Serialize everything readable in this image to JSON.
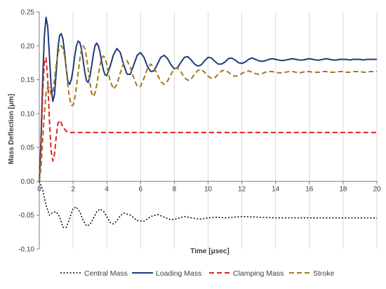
{
  "chart_data": {
    "type": "line",
    "title": "",
    "xlabel": "Time [μsec]",
    "ylabel": "Mass Deflection [μm]",
    "xlim": [
      0,
      20
    ],
    "ylim": [
      -0.1,
      0.25
    ],
    "x_ticks": [
      "0",
      "2",
      "4",
      "6",
      "8",
      "10",
      "12",
      "14",
      "16",
      "18",
      "20"
    ],
    "y_ticks": [
      "-0.10",
      "-0.05",
      "0.00",
      "0.05",
      "0.10",
      "0.15",
      "0.20",
      "0.25"
    ],
    "grid": "vertical",
    "legend_position": "bottom",
    "series": [
      {
        "name": "Central Mass",
        "color": "#000000",
        "style": "dotted",
        "x": [
          0,
          0.2,
          0.4,
          0.6,
          0.8,
          1.0,
          1.2,
          1.4,
          1.6,
          1.8,
          2.0,
          2.2,
          2.4,
          2.6,
          2.8,
          3.0,
          3.2,
          3.4,
          3.6,
          3.8,
          4.0,
          4.2,
          4.4,
          4.6,
          4.8,
          5.0,
          5.4,
          5.8,
          6.2,
          6.6,
          7.0,
          7.4,
          7.8,
          8.2,
          8.6,
          9.0,
          9.5,
          10.0,
          10.5,
          11.0,
          11.5,
          12.0,
          13.0,
          14.0,
          16.0,
          18.0,
          20.0
        ],
        "y": [
          0,
          -0.012,
          -0.035,
          -0.05,
          -0.046,
          -0.045,
          -0.052,
          -0.068,
          -0.068,
          -0.055,
          -0.04,
          -0.038,
          -0.045,
          -0.058,
          -0.066,
          -0.064,
          -0.055,
          -0.045,
          -0.041,
          -0.044,
          -0.052,
          -0.061,
          -0.063,
          -0.058,
          -0.051,
          -0.047,
          -0.05,
          -0.058,
          -0.059,
          -0.052,
          -0.049,
          -0.053,
          -0.057,
          -0.055,
          -0.052,
          -0.054,
          -0.056,
          -0.054,
          -0.053,
          -0.054,
          -0.053,
          -0.052,
          -0.053,
          -0.054,
          -0.054,
          -0.054,
          -0.054
        ]
      },
      {
        "name": "Loading Mass",
        "color": "#1f3b7a",
        "style": "solid",
        "x": [
          0,
          0.1,
          0.2,
          0.3,
          0.4,
          0.5,
          0.6,
          0.7,
          0.8,
          0.9,
          1.0,
          1.1,
          1.2,
          1.3,
          1.4,
          1.5,
          1.6,
          1.7,
          1.8,
          1.9,
          2.0,
          2.1,
          2.2,
          2.3,
          2.4,
          2.5,
          2.6,
          2.7,
          2.8,
          2.9,
          3.0,
          3.1,
          3.2,
          3.3,
          3.4,
          3.5,
          3.6,
          3.7,
          3.8,
          3.9,
          4.0,
          4.2,
          4.4,
          4.6,
          4.8,
          5.0,
          5.2,
          5.4,
          5.6,
          5.8,
          6.0,
          6.2,
          6.4,
          6.6,
          6.8,
          7.0,
          7.2,
          7.4,
          7.6,
          7.8,
          8.0,
          8.2,
          8.4,
          8.6,
          8.8,
          9.0,
          9.2,
          9.4,
          9.6,
          9.8,
          10.0,
          10.2,
          10.4,
          10.6,
          10.8,
          11.0,
          11.2,
          11.4,
          11.6,
          11.8,
          12.0,
          12.2,
          12.4,
          12.6,
          12.8,
          13.0,
          13.2,
          13.4,
          13.6,
          13.8,
          14.0,
          14.2,
          14.4,
          14.6,
          14.8,
          15.0,
          15.2,
          15.4,
          15.6,
          15.8,
          16.0,
          16.2,
          16.4,
          16.6,
          16.8,
          17.0,
          17.2,
          17.4,
          17.6,
          17.8,
          18.0,
          18.2,
          18.4,
          18.6,
          18.8,
          19.0,
          19.2,
          19.4,
          19.6,
          19.8,
          20.0
        ],
        "y": [
          0,
          0.06,
          0.15,
          0.215,
          0.242,
          0.228,
          0.185,
          0.14,
          0.118,
          0.128,
          0.16,
          0.195,
          0.215,
          0.218,
          0.21,
          0.19,
          0.165,
          0.147,
          0.143,
          0.15,
          0.165,
          0.185,
          0.2,
          0.207,
          0.205,
          0.195,
          0.178,
          0.16,
          0.148,
          0.146,
          0.155,
          0.17,
          0.187,
          0.2,
          0.204,
          0.2,
          0.19,
          0.176,
          0.164,
          0.157,
          0.156,
          0.17,
          0.187,
          0.196,
          0.19,
          0.172,
          0.158,
          0.158,
          0.172,
          0.186,
          0.19,
          0.183,
          0.17,
          0.162,
          0.163,
          0.173,
          0.183,
          0.186,
          0.181,
          0.172,
          0.166,
          0.168,
          0.176,
          0.183,
          0.184,
          0.179,
          0.173,
          0.17,
          0.172,
          0.178,
          0.183,
          0.182,
          0.177,
          0.173,
          0.173,
          0.176,
          0.181,
          0.182,
          0.179,
          0.175,
          0.174,
          0.176,
          0.18,
          0.182,
          0.18,
          0.178,
          0.177,
          0.178,
          0.18,
          0.181,
          0.18,
          0.179,
          0.178,
          0.179,
          0.18,
          0.181,
          0.18,
          0.179,
          0.179,
          0.18,
          0.181,
          0.18,
          0.179,
          0.179,
          0.18,
          0.181,
          0.18,
          0.179,
          0.179,
          0.18,
          0.18,
          0.18,
          0.179,
          0.18,
          0.18,
          0.18,
          0.179,
          0.18,
          0.18,
          0.18,
          0.18
        ]
      },
      {
        "name": "Clamping Mass",
        "color": "#e02020",
        "style": "dashed",
        "x": [
          0,
          0.1,
          0.2,
          0.3,
          0.4,
          0.5,
          0.6,
          0.7,
          0.8,
          0.9,
          1.0,
          1.1,
          1.2,
          1.3,
          1.4,
          1.5,
          1.6,
          1.7,
          1.8,
          2.0,
          20.0
        ],
        "y": [
          0,
          0.05,
          0.13,
          0.175,
          0.182,
          0.15,
          0.09,
          0.045,
          0.03,
          0.04,
          0.065,
          0.085,
          0.09,
          0.086,
          0.08,
          0.077,
          0.074,
          0.072,
          0.072,
          0.072,
          0.072
        ]
      },
      {
        "name": "Stroke",
        "color": "#a07a1c",
        "style": "dashed",
        "x": [
          0,
          0.1,
          0.2,
          0.3,
          0.4,
          0.5,
          0.6,
          0.7,
          0.8,
          0.9,
          1.0,
          1.1,
          1.2,
          1.3,
          1.4,
          1.5,
          1.6,
          1.7,
          1.8,
          1.9,
          2.0,
          2.1,
          2.2,
          2.3,
          2.4,
          2.5,
          2.6,
          2.7,
          2.8,
          2.9,
          3.0,
          3.1,
          3.2,
          3.3,
          3.4,
          3.5,
          3.6,
          3.7,
          3.8,
          3.9,
          4.0,
          4.2,
          4.4,
          4.6,
          4.8,
          5.0,
          5.2,
          5.4,
          5.6,
          5.8,
          6.0,
          6.2,
          6.4,
          6.6,
          6.8,
          7.0,
          7.2,
          7.4,
          7.6,
          7.8,
          8.0,
          8.2,
          8.4,
          8.6,
          8.8,
          9.0,
          9.2,
          9.4,
          9.6,
          9.8,
          10.0,
          10.2,
          10.4,
          10.6,
          10.8,
          11.0,
          11.2,
          11.4,
          11.6,
          11.8,
          12.0,
          12.2,
          12.4,
          12.6,
          12.8,
          13.0,
          13.2,
          13.4,
          13.6,
          13.8,
          14.0,
          14.2,
          14.4,
          14.6,
          14.8,
          15.0,
          15.2,
          15.4,
          15.6,
          15.8,
          16.0,
          16.2,
          16.4,
          16.6,
          16.8,
          17.0,
          17.2,
          17.4,
          17.6,
          17.8,
          18.0,
          18.2,
          18.4,
          18.6,
          18.8,
          19.0,
          19.2,
          19.4,
          19.6,
          19.8,
          20.0
        ],
        "y": [
          0,
          0.02,
          0.06,
          0.1,
          0.13,
          0.14,
          0.138,
          0.128,
          0.13,
          0.15,
          0.172,
          0.188,
          0.198,
          0.2,
          0.196,
          0.185,
          0.165,
          0.14,
          0.122,
          0.112,
          0.112,
          0.122,
          0.14,
          0.16,
          0.18,
          0.195,
          0.2,
          0.196,
          0.183,
          0.164,
          0.145,
          0.13,
          0.125,
          0.13,
          0.142,
          0.158,
          0.172,
          0.182,
          0.185,
          0.182,
          0.172,
          0.148,
          0.136,
          0.143,
          0.16,
          0.175,
          0.178,
          0.168,
          0.152,
          0.14,
          0.14,
          0.152,
          0.166,
          0.173,
          0.168,
          0.157,
          0.147,
          0.143,
          0.148,
          0.158,
          0.166,
          0.167,
          0.161,
          0.153,
          0.149,
          0.151,
          0.158,
          0.164,
          0.165,
          0.161,
          0.155,
          0.152,
          0.153,
          0.158,
          0.163,
          0.164,
          0.161,
          0.157,
          0.155,
          0.156,
          0.159,
          0.162,
          0.163,
          0.161,
          0.159,
          0.158,
          0.159,
          0.161,
          0.162,
          0.162,
          0.161,
          0.16,
          0.16,
          0.161,
          0.162,
          0.162,
          0.161,
          0.16,
          0.161,
          0.162,
          0.162,
          0.161,
          0.161,
          0.161,
          0.162,
          0.162,
          0.161,
          0.161,
          0.161,
          0.162,
          0.162,
          0.161,
          0.161,
          0.162,
          0.162,
          0.162,
          0.161,
          0.161,
          0.162,
          0.162,
          0.162
        ]
      }
    ]
  }
}
